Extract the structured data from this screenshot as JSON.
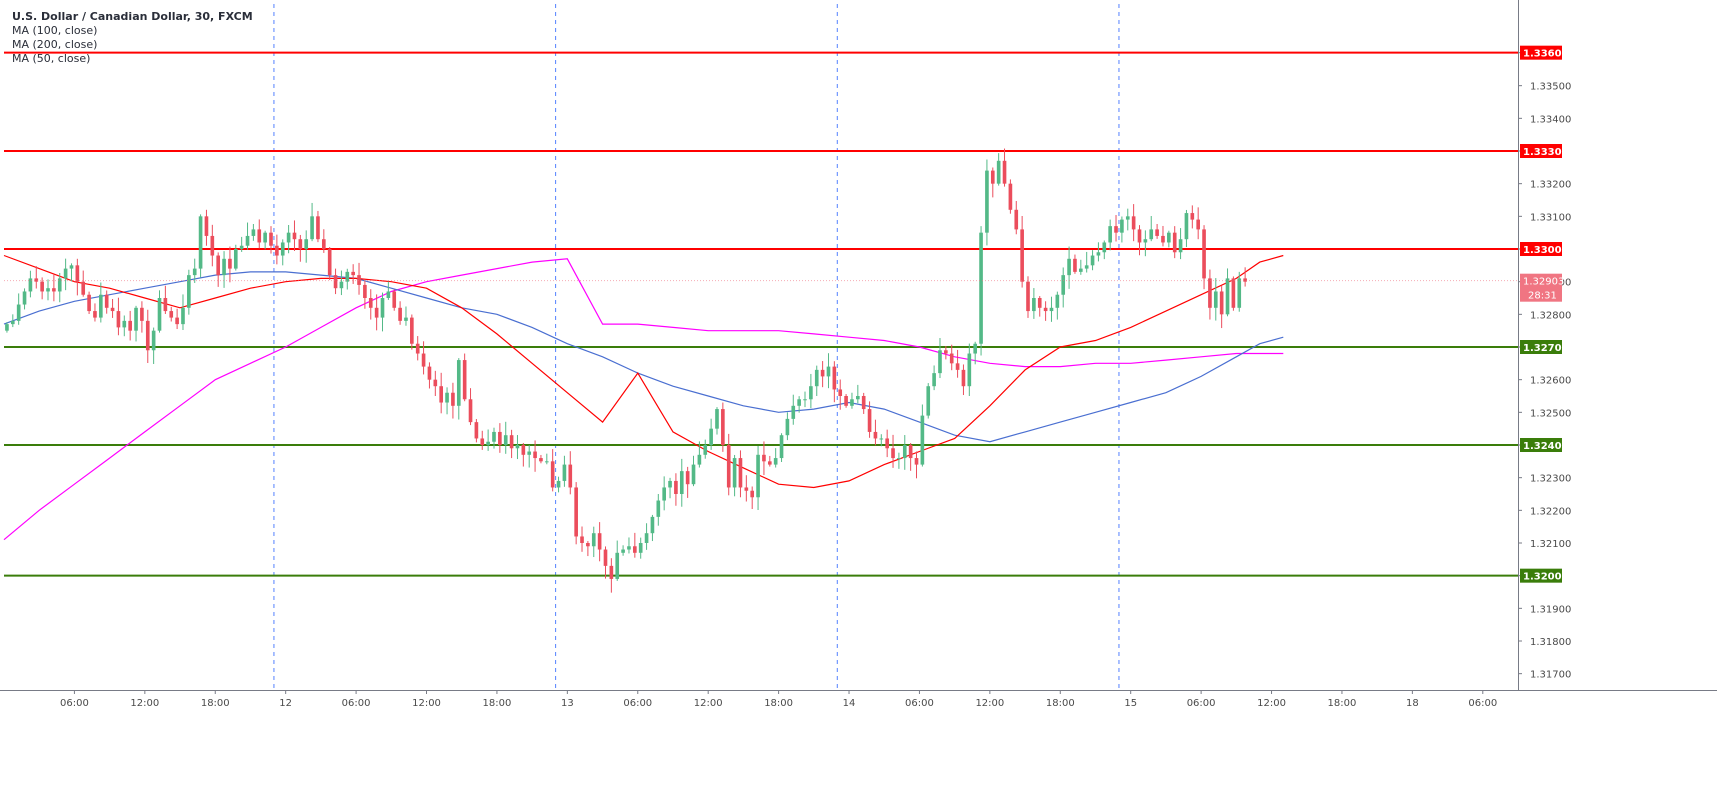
{
  "header": {
    "symbol_line": "U.S. Dollar / Canadian Dollar, 30, FXCM",
    "indicators": [
      "MA (100, close)",
      "MA (200, close)",
      "MA (50, close)"
    ]
  },
  "colors": {
    "bull": "#53b987",
    "bear": "#eb4d5c",
    "ma50": "#ff0000",
    "ma100": "#4a6fd1",
    "ma200": "#ff00ff",
    "resistance": "#ff0000",
    "support": "#3a7d0a",
    "session_line": "#2962ff",
    "last_price_badge": "#f07582"
  },
  "chart_data": {
    "type": "candlestick",
    "symbol": "U.S. Dollar / Canadian Dollar",
    "interval": "30",
    "source": "FXCM",
    "ylim": [
      1.3165,
      1.3375
    ],
    "y_ticks": [
      "1.31700",
      "1.31800",
      "1.31900",
      "1.32000",
      "1.32100",
      "1.32200",
      "1.32300",
      "1.32400",
      "1.32500",
      "1.32600",
      "1.32700",
      "1.32800",
      "1.32900",
      "1.33000",
      "1.33100",
      "1.33200",
      "1.33300",
      "1.33400",
      "1.33500",
      "1.33601"
    ],
    "x_ticks": [
      {
        "label": "06:00",
        "t": 12
      },
      {
        "label": "12:00",
        "t": 24
      },
      {
        "label": "18:00",
        "t": 36
      },
      {
        "label": "12",
        "t": 48
      },
      {
        "label": "06:00",
        "t": 60
      },
      {
        "label": "12:00",
        "t": 72
      },
      {
        "label": "18:00",
        "t": 84
      },
      {
        "label": "13",
        "t": 96
      },
      {
        "label": "06:00",
        "t": 108
      },
      {
        "label": "12:00",
        "t": 120
      },
      {
        "label": "18:00",
        "t": 132
      },
      {
        "label": "14",
        "t": 144
      },
      {
        "label": "06:00",
        "t": 156
      },
      {
        "label": "12:00",
        "t": 168
      },
      {
        "label": "18:00",
        "t": 180
      },
      {
        "label": "15",
        "t": 192
      },
      {
        "label": "06:00",
        "t": 204
      },
      {
        "label": "12:00",
        "t": 216
      },
      {
        "label": "18:00",
        "t": 228
      },
      {
        "label": "18",
        "t": 240
      },
      {
        "label": "06:00",
        "t": 252
      }
    ],
    "t_range": [
      0,
      258
    ],
    "session_lines_t": [
      46,
      94,
      142,
      190
    ],
    "horizontal_levels": [
      {
        "price": 1.33601,
        "label": "1.33601",
        "kind": "resistance"
      },
      {
        "price": 1.333,
        "label": "1.33300",
        "kind": "resistance"
      },
      {
        "price": 1.33,
        "label": "1.33000",
        "kind": "resistance"
      },
      {
        "price": 1.327,
        "label": "1.32700",
        "kind": "support"
      },
      {
        "price": 1.324,
        "label": "1.32400",
        "kind": "support"
      },
      {
        "price": 1.32,
        "label": "1.32000",
        "kind": "support"
      }
    ],
    "last_price": {
      "price": 1.32903,
      "label": "1.32903",
      "countdown": "28:31"
    },
    "closes": [
      1.3277,
      1.3278,
      1.3283,
      1.3287,
      1.3291,
      1.329,
      1.3287,
      1.3288,
      1.3287,
      1.3291,
      1.3294,
      1.3295,
      1.329,
      1.3286,
      1.3281,
      1.3279,
      1.3286,
      1.3282,
      1.3281,
      1.3276,
      1.3278,
      1.3275,
      1.3282,
      1.3278,
      1.3269,
      1.3275,
      1.3285,
      1.3281,
      1.3279,
      1.3277,
      1.3282,
      1.3292,
      1.3294,
      1.331,
      1.3304,
      1.3298,
      1.3292,
      1.3297,
      1.3294,
      1.33,
      1.3301,
      1.3304,
      1.3306,
      1.3302,
      1.3305,
      1.3301,
      1.3298,
      1.3302,
      1.3305,
      1.3303,
      1.33,
      1.3303,
      1.331,
      1.3303,
      1.33,
      1.3292,
      1.3288,
      1.329,
      1.3293,
      1.3292,
      1.3289,
      1.3285,
      1.3282,
      1.3279,
      1.3285,
      1.3287,
      1.3282,
      1.3278,
      1.3279,
      1.3271,
      1.3268,
      1.3264,
      1.326,
      1.3258,
      1.3253,
      1.3256,
      1.3252,
      1.3266,
      1.3254,
      1.3247,
      1.3242,
      1.324,
      1.3241,
      1.3244,
      1.324,
      1.3243,
      1.3239,
      1.324,
      1.3237,
      1.3238,
      1.3236,
      1.3235,
      1.3235,
      1.3227,
      1.3229,
      1.3234,
      1.3227,
      1.3212,
      1.321,
      1.3209,
      1.3213,
      1.3208,
      1.3203,
      1.3199,
      1.3207,
      1.3208,
      1.3209,
      1.3207,
      1.321,
      1.3213,
      1.3218,
      1.3223,
      1.3227,
      1.3229,
      1.3225,
      1.3232,
      1.3228,
      1.3234,
      1.3237,
      1.324,
      1.3245,
      1.3251,
      1.324,
      1.3227,
      1.3236,
      1.3227,
      1.3226,
      1.3224,
      1.3237,
      1.3235,
      1.3234,
      1.3236,
      1.3243,
      1.3248,
      1.3252,
      1.3254,
      1.3254,
      1.3258,
      1.3263,
      1.3261,
      1.3264,
      1.3257,
      1.3255,
      1.3252,
      1.3254,
      1.3255,
      1.3251,
      1.3244,
      1.3242,
      1.3242,
      1.3239,
      1.3236,
      1.3236,
      1.324,
      1.3236,
      1.3234,
      1.3249,
      1.3258,
      1.3262,
      1.3269,
      1.3268,
      1.3265,
      1.3263,
      1.3258,
      1.3268,
      1.3271,
      1.3305,
      1.3324,
      1.332,
      1.3327,
      1.332,
      1.3312,
      1.3306,
      1.329,
      1.3281,
      1.3285,
      1.3282,
      1.3281,
      1.3282,
      1.3286,
      1.3292,
      1.3297,
      1.3293,
      1.3294,
      1.3295,
      1.3298,
      1.3299,
      1.3302,
      1.3307,
      1.3305,
      1.3309,
      1.331,
      1.3306,
      1.3302,
      1.3303,
      1.3306,
      1.3304,
      1.3302,
      1.3305,
      1.3299,
      1.3303,
      1.3311,
      1.3309,
      1.3306,
      1.3291,
      1.3282,
      1.3287,
      1.328,
      1.3291,
      1.3282,
      1.3291,
      1.329
    ],
    "ma50": [
      [
        0,
        1.3298
      ],
      [
        6,
        1.3294
      ],
      [
        12,
        1.329
      ],
      [
        18,
        1.3288
      ],
      [
        24,
        1.3285
      ],
      [
        30,
        1.3282
      ],
      [
        36,
        1.3285
      ],
      [
        42,
        1.3288
      ],
      [
        48,
        1.329
      ],
      [
        54,
        1.3291
      ],
      [
        60,
        1.3291
      ],
      [
        66,
        1.329
      ],
      [
        72,
        1.3288
      ],
      [
        78,
        1.3282
      ],
      [
        84,
        1.3274
      ],
      [
        90,
        1.3265
      ],
      [
        96,
        1.3256
      ],
      [
        102,
        1.3247
      ],
      [
        108,
        1.3262
      ],
      [
        114,
        1.3244
      ],
      [
        120,
        1.3238
      ],
      [
        126,
        1.3233
      ],
      [
        132,
        1.3228
      ],
      [
        138,
        1.3227
      ],
      [
        144,
        1.3229
      ],
      [
        150,
        1.3234
      ],
      [
        156,
        1.3238
      ],
      [
        162,
        1.3242
      ],
      [
        168,
        1.3252
      ],
      [
        174,
        1.3263
      ],
      [
        180,
        1.327
      ],
      [
        186,
        1.3272
      ],
      [
        192,
        1.3276
      ],
      [
        198,
        1.3281
      ],
      [
        204,
        1.3286
      ],
      [
        210,
        1.3291
      ],
      [
        214,
        1.3296
      ],
      [
        218,
        1.3298
      ]
    ],
    "ma100": [
      [
        0,
        1.3277
      ],
      [
        6,
        1.3281
      ],
      [
        12,
        1.3284
      ],
      [
        18,
        1.3286
      ],
      [
        24,
        1.3288
      ],
      [
        30,
        1.329
      ],
      [
        36,
        1.3292
      ],
      [
        42,
        1.3293
      ],
      [
        48,
        1.3293
      ],
      [
        54,
        1.3292
      ],
      [
        60,
        1.3291
      ],
      [
        66,
        1.3288
      ],
      [
        72,
        1.3285
      ],
      [
        78,
        1.3282
      ],
      [
        84,
        1.328
      ],
      [
        90,
        1.3276
      ],
      [
        96,
        1.3271
      ],
      [
        102,
        1.3267
      ],
      [
        108,
        1.3262
      ],
      [
        114,
        1.3258
      ],
      [
        120,
        1.3255
      ],
      [
        126,
        1.3252
      ],
      [
        132,
        1.325
      ],
      [
        138,
        1.3251
      ],
      [
        144,
        1.3253
      ],
      [
        150,
        1.3251
      ],
      [
        156,
        1.3247
      ],
      [
        162,
        1.3243
      ],
      [
        168,
        1.3241
      ],
      [
        174,
        1.3244
      ],
      [
        180,
        1.3247
      ],
      [
        186,
        1.325
      ],
      [
        192,
        1.3253
      ],
      [
        198,
        1.3256
      ],
      [
        204,
        1.3261
      ],
      [
        210,
        1.3267
      ],
      [
        214,
        1.3271
      ],
      [
        218,
        1.3273
      ]
    ],
    "ma200": [
      [
        0,
        1.3211
      ],
      [
        6,
        1.322
      ],
      [
        12,
        1.3228
      ],
      [
        18,
        1.3236
      ],
      [
        24,
        1.3244
      ],
      [
        30,
        1.3252
      ],
      [
        36,
        1.326
      ],
      [
        42,
        1.3265
      ],
      [
        48,
        1.327
      ],
      [
        54,
        1.3276
      ],
      [
        60,
        1.3282
      ],
      [
        66,
        1.3287
      ],
      [
        72,
        1.329
      ],
      [
        78,
        1.3292
      ],
      [
        84,
        1.3294
      ],
      [
        90,
        1.3296
      ],
      [
        96,
        1.3297
      ],
      [
        102,
        1.3277
      ],
      [
        108,
        1.3277
      ],
      [
        114,
        1.3276
      ],
      [
        120,
        1.3275
      ],
      [
        126,
        1.3275
      ],
      [
        132,
        1.3275
      ],
      [
        138,
        1.3274
      ],
      [
        144,
        1.3273
      ],
      [
        150,
        1.3272
      ],
      [
        156,
        1.327
      ],
      [
        162,
        1.3267
      ],
      [
        168,
        1.3265
      ],
      [
        174,
        1.3264
      ],
      [
        180,
        1.3264
      ],
      [
        186,
        1.3265
      ],
      [
        192,
        1.3265
      ],
      [
        198,
        1.3266
      ],
      [
        204,
        1.3267
      ],
      [
        210,
        1.3268
      ],
      [
        214,
        1.3268
      ],
      [
        218,
        1.3268
      ]
    ]
  }
}
